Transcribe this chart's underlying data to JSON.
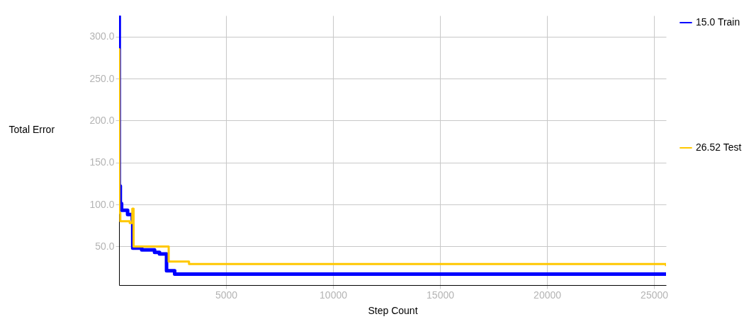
{
  "chart_data": {
    "type": "step",
    "xlabel": "Step Count",
    "ylabel": "Total Error",
    "xlim": [
      0,
      25560
    ],
    "ylim": [
      4,
      325
    ],
    "xticks": [
      5000,
      10000,
      15000,
      20000,
      25000
    ],
    "yticks": [
      {
        "value": 50,
        "label": "50.0"
      },
      {
        "value": 100,
        "label": "100.0"
      },
      {
        "value": 150,
        "label": "150.0"
      },
      {
        "value": 200,
        "label": "200.0"
      },
      {
        "value": 250,
        "label": "250.0"
      },
      {
        "value": 300,
        "label": "300.0"
      }
    ],
    "grid": true,
    "legend": "right",
    "line_style": "solid",
    "series": [
      {
        "name": "15.0 Train",
        "color": "#0000ff",
        "x": [
          0,
          10,
          60,
          120,
          400,
          620,
          640,
          1060,
          1660,
          1890,
          2220,
          2600,
          25560
        ],
        "values": [
          324,
          122,
          101,
          93,
          88,
          82,
          48,
          46,
          43,
          41,
          21,
          17,
          15
        ]
      },
      {
        "name": "26.52 Test",
        "color": "#ffc800",
        "x": [
          0,
          10,
          60,
          500,
          620,
          680,
          2320,
          3270,
          25560
        ],
        "values": [
          285,
          90,
          80,
          78,
          95,
          50,
          32,
          29,
          26.52
        ]
      }
    ]
  }
}
